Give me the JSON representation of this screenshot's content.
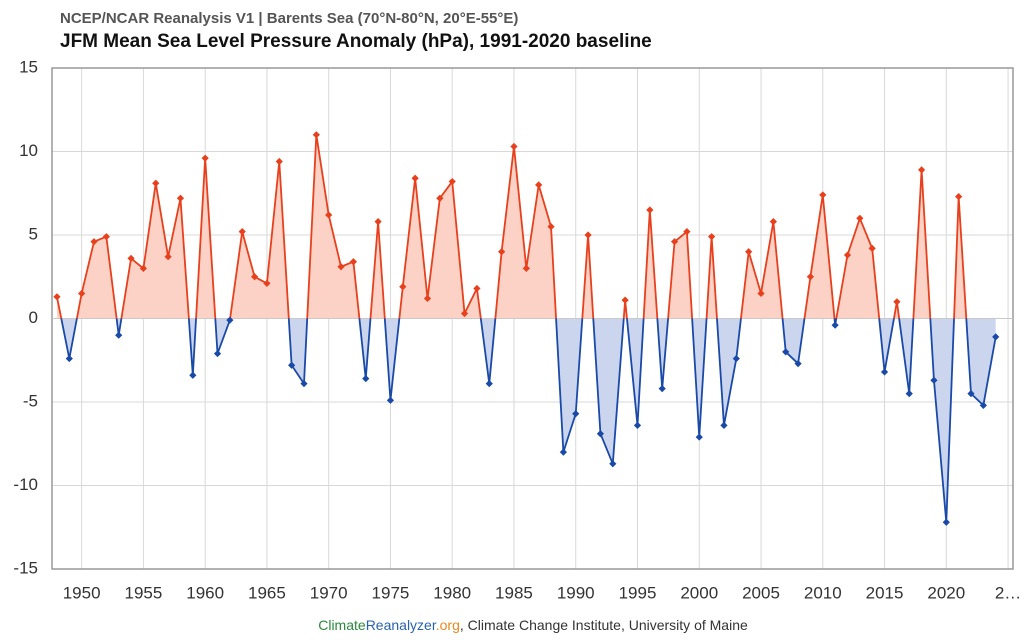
{
  "chart_data": {
    "type": "line",
    "subtitle": "NCEP/NCAR Reanalysis V1 | Barents Sea (70°N-80°N, 20°E-55°E)",
    "title": "JFM Mean Sea Level Pressure Anomaly (hPa), 1991-2020 baseline",
    "x": [
      1948,
      1949,
      1950,
      1951,
      1952,
      1953,
      1954,
      1955,
      1956,
      1957,
      1958,
      1959,
      1960,
      1961,
      1962,
      1963,
      1964,
      1965,
      1966,
      1967,
      1968,
      1969,
      1970,
      1971,
      1972,
      1973,
      1974,
      1975,
      1976,
      1977,
      1978,
      1979,
      1980,
      1981,
      1982,
      1983,
      1984,
      1985,
      1986,
      1987,
      1988,
      1989,
      1990,
      1991,
      1992,
      1993,
      1994,
      1995,
      1996,
      1997,
      1998,
      1999,
      2000,
      2001,
      2002,
      2003,
      2004,
      2005,
      2006,
      2007,
      2008,
      2009,
      2010,
      2011,
      2012,
      2013,
      2014,
      2015,
      2016,
      2017,
      2018,
      2019,
      2020,
      2021,
      2022,
      2023,
      2024
    ],
    "series": [
      {
        "values": [
          1.3,
          -2.4,
          1.5,
          4.6,
          4.9,
          -1.0,
          3.6,
          3.0,
          8.1,
          3.7,
          7.2,
          -3.4,
          9.6,
          -2.1,
          -0.1,
          5.2,
          2.5,
          2.1,
          9.4,
          -2.8,
          -3.9,
          11.0,
          6.2,
          3.1,
          3.4,
          -3.6,
          5.8,
          -4.9,
          1.9,
          8.4,
          1.2,
          7.2,
          8.2,
          0.3,
          1.8,
          -3.9,
          4.0,
          10.3,
          3.0,
          8.0,
          5.5,
          -8.0,
          -5.7,
          5.0,
          -6.9,
          -8.7,
          1.1,
          -6.4,
          6.5,
          -4.2,
          4.6,
          5.2,
          -7.1,
          4.9,
          -6.4,
          -2.4,
          4.0,
          1.5,
          5.8,
          -2.0,
          -2.7,
          2.5,
          7.4,
          -0.4,
          3.8,
          6.0,
          4.2,
          -3.2,
          1.0,
          -4.5,
          8.9,
          -3.7,
          -12.2,
          7.3,
          -4.5,
          -5.2,
          -1.1
        ]
      }
    ],
    "positive_color": "#e8401c",
    "negative_color": "#1a4aa8",
    "positive_fill": "#fdd2c6",
    "negative_fill": "#cbd5ee",
    "xlim": [
      1947.6,
      2025.4
    ],
    "xticks": [
      1950,
      1955,
      1960,
      1965,
      1970,
      1975,
      1980,
      1985,
      1990,
      1995,
      2000,
      2005,
      2010,
      2015,
      2020,
      {
        "value": 2025,
        "label": "2…"
      }
    ],
    "ylim": [
      -15,
      15
    ],
    "yticks": [
      -15,
      -10,
      -5,
      0,
      5,
      10,
      15
    ],
    "grid": true,
    "footer": [
      "Climate",
      "Reanalyzer",
      ".org",
      ", Climate Change Institute, University of Maine"
    ]
  }
}
